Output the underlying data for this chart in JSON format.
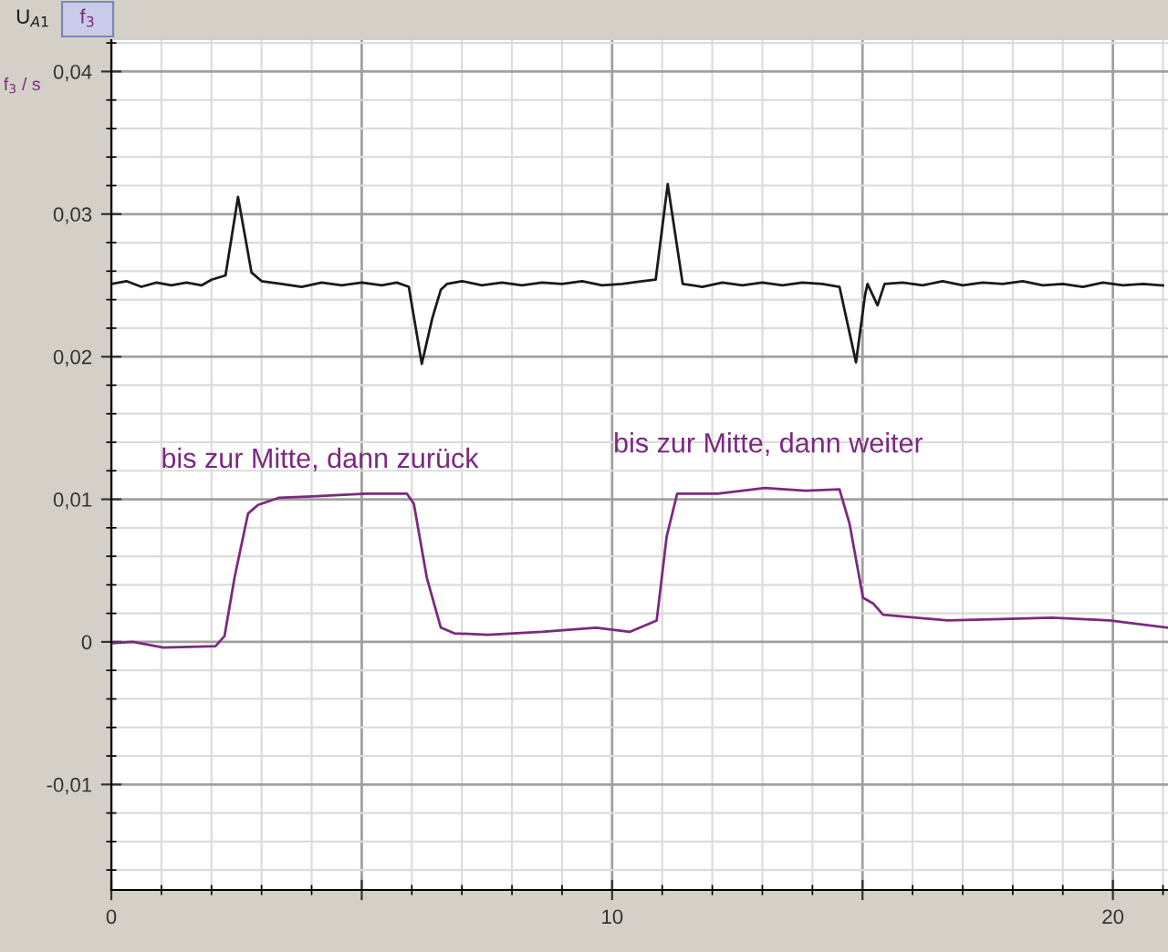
{
  "chart_data": {
    "type": "line",
    "ylabel": "f$_{3}$ / s",
    "annotations": [
      "bis zur Mitte, dann zurück",
      "bis zur Mitte, dann weiter"
    ],
    "series": [
      {
        "name": "U$_{A1}$",
        "color": "#1a1a1a",
        "x": [
          0,
          0.3,
          0.6,
          0.9,
          1.2,
          1.5,
          1.8,
          2.0,
          2.28,
          2.53,
          2.8,
          3.0,
          3.4,
          3.8,
          4.2,
          4.6,
          5.0,
          5.4,
          5.7,
          5.94,
          6.2,
          6.41,
          6.58,
          6.7,
          7.0,
          7.4,
          7.8,
          8.2,
          8.6,
          9.0,
          9.4,
          9.8,
          10.2,
          10.6,
          10.87,
          11.11,
          11.41,
          11.8,
          12.2,
          12.6,
          13.0,
          13.4,
          13.8,
          14.2,
          14.54,
          14.87,
          15.05,
          15.1,
          15.3,
          15.44,
          15.8,
          16.2,
          16.6,
          17.0,
          17.4,
          17.8,
          18.2,
          18.6,
          19.0,
          19.4,
          19.8,
          20.2,
          20.6,
          21.0
        ],
        "values": [
          0.0251,
          0.0253,
          0.0249,
          0.0252,
          0.025,
          0.0252,
          0.025,
          0.0254,
          0.0257,
          0.0312,
          0.0259,
          0.0253,
          0.0251,
          0.0249,
          0.0252,
          0.025,
          0.0252,
          0.025,
          0.0252,
          0.0249,
          0.0195,
          0.0227,
          0.0247,
          0.0251,
          0.0253,
          0.025,
          0.0252,
          0.025,
          0.0252,
          0.0251,
          0.0253,
          0.025,
          0.0251,
          0.0253,
          0.0254,
          0.0321,
          0.0251,
          0.0249,
          0.0252,
          0.025,
          0.0252,
          0.025,
          0.0252,
          0.0251,
          0.0249,
          0.0196,
          0.0243,
          0.0251,
          0.0236,
          0.0251,
          0.0252,
          0.025,
          0.0253,
          0.025,
          0.0252,
          0.0251,
          0.0253,
          0.025,
          0.0251,
          0.0249,
          0.0252,
          0.025,
          0.0251,
          0.025
        ]
      },
      {
        "name": "f$_{3}$",
        "color": "#7b2a7e",
        "x": [
          0,
          0.43,
          1.04,
          2.08,
          2.26,
          2.46,
          2.73,
          2.93,
          3.34,
          4.01,
          5.09,
          5.9,
          6.04,
          6.3,
          6.58,
          6.85,
          7.52,
          8.6,
          9.68,
          10.35,
          10.89,
          11.09,
          11.3,
          12.11,
          13.05,
          13.86,
          14.54,
          14.74,
          15.01,
          15.21,
          15.41,
          16.7,
          17.78,
          18.79,
          19.93,
          21.08
        ],
        "values": [
          -0.0001,
          0.0,
          -0.0004,
          -0.0003,
          0.0004,
          0.0045,
          0.009,
          0.0096,
          0.0101,
          0.0102,
          0.0104,
          0.0104,
          0.0097,
          0.0045,
          0.001,
          0.0006,
          0.0005,
          0.0007,
          0.001,
          0.0007,
          0.0015,
          0.0074,
          0.0104,
          0.0104,
          0.0108,
          0.0106,
          0.0107,
          0.0083,
          0.0031,
          0.0027,
          0.0019,
          0.0015,
          0.0016,
          0.0017,
          0.0015,
          0.001
        ]
      }
    ],
    "xlim": [
      0,
      21.1
    ],
    "ylim": [
      -0.0174,
      0.0422
    ],
    "xticks": [
      0,
      {
        "value": 5,
        "label": null
      },
      10,
      {
        "value": 15,
        "label": null
      },
      20
    ],
    "yticks": [
      {
        "value": -0.01,
        "label": "-0,01"
      },
      {
        "value": 0,
        "label": "0"
      },
      {
        "value": 0.01,
        "label": "0,01"
      },
      {
        "value": 0.02,
        "label": "0,02"
      },
      {
        "value": 0.03,
        "label": "0,03"
      },
      {
        "value": 0.04,
        "label": "0,04"
      }
    ],
    "grid": true,
    "legend": "top left"
  }
}
